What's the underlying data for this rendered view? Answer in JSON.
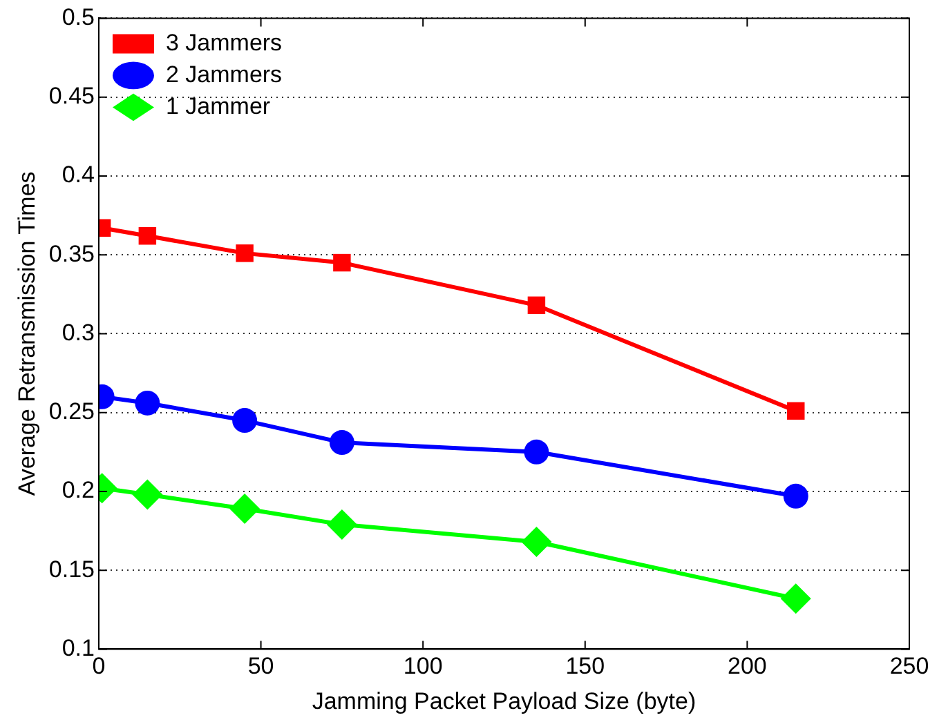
{
  "chart_data": {
    "type": "line",
    "xlabel": "Jamming Packet Payload Size (byte)",
    "ylabel": "Average Retransmission Times",
    "x": [
      1,
      15,
      45,
      75,
      135,
      215
    ],
    "series": [
      {
        "name": "3 Jammers",
        "color": "#ff0000",
        "marker": "square",
        "values": [
          0.367,
          0.362,
          0.351,
          0.345,
          0.318,
          0.251
        ]
      },
      {
        "name": "2 Jammers",
        "color": "#0000ff",
        "marker": "circle",
        "values": [
          0.26,
          0.256,
          0.245,
          0.231,
          0.225,
          0.197
        ]
      },
      {
        "name": "1 Jammer",
        "color": "#00ff00",
        "marker": "diamond",
        "values": [
          0.202,
          0.198,
          0.189,
          0.179,
          0.168,
          0.132
        ]
      }
    ],
    "xlim": [
      0,
      250
    ],
    "xticks": [
      0,
      50,
      100,
      150,
      200,
      250
    ],
    "ylim": [
      0.1,
      0.5
    ],
    "yticks": [
      0.1,
      0.15,
      0.2,
      0.25,
      0.3,
      0.35,
      0.4,
      0.45,
      0.5
    ],
    "grid": "y",
    "legend": "top left",
    "line_style": "solid"
  }
}
